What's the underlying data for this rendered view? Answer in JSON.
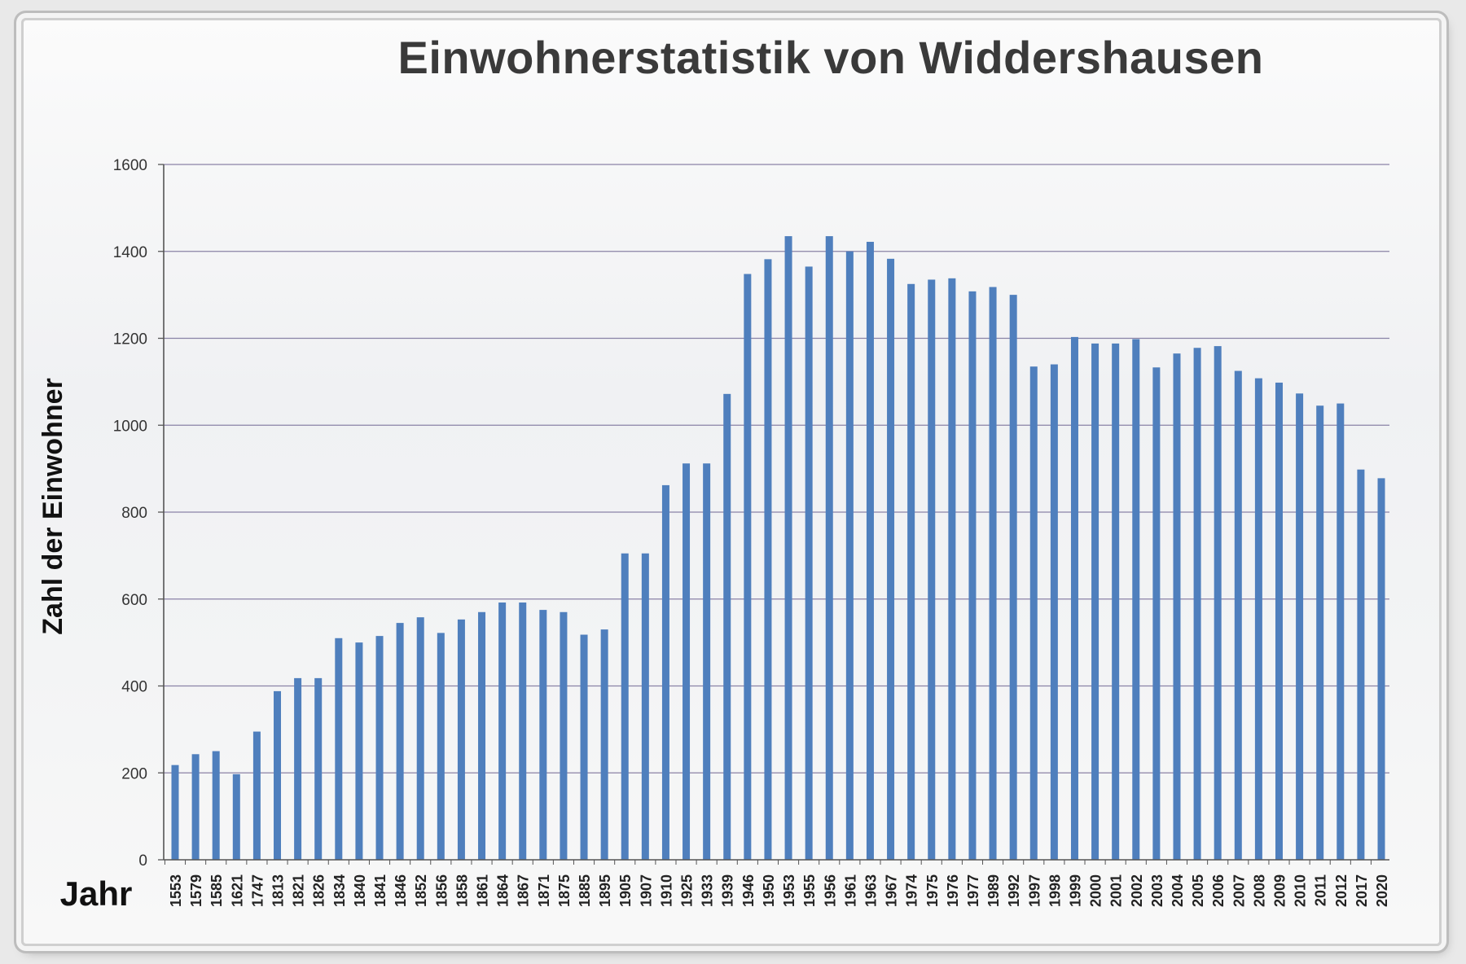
{
  "chart_data": {
    "type": "bar",
    "title": "Einwohnerstatistik von Widdershausen",
    "xlabel": "Jahr",
    "ylabel": "Zahl  der Einwohner",
    "ylim": [
      0,
      1600
    ],
    "yticks": [
      0,
      200,
      400,
      600,
      800,
      1000,
      1200,
      1400,
      1600
    ],
    "grid": true,
    "legend": "none",
    "colors": {
      "bar": "#4f7fbd",
      "grid": "#8a82a6",
      "axis": "#555555"
    },
    "categories": [
      "1553",
      "1579",
      "1585",
      "1621",
      "1747",
      "1813",
      "1821",
      "1826",
      "1834",
      "1840",
      "1841",
      "1846",
      "1852",
      "1856",
      "1858",
      "1861",
      "1864",
      "1867",
      "1871",
      "1875",
      "1885",
      "1895",
      "1905",
      "1907",
      "1910",
      "1925",
      "1933",
      "1939",
      "1946",
      "1950",
      "1953",
      "1955",
      "1956",
      "1961",
      "1963",
      "1967",
      "1974",
      "1975",
      "1976",
      "1977",
      "1989",
      "1992",
      "1997",
      "1998",
      "1999",
      "2000",
      "2001",
      "2002",
      "2003",
      "2004",
      "2005",
      "2006",
      "2007",
      "2008",
      "2009",
      "2010",
      "2011",
      "2012",
      "2017",
      "2020"
    ],
    "values": [
      218,
      243,
      250,
      197,
      295,
      388,
      418,
      418,
      510,
      500,
      515,
      545,
      558,
      522,
      553,
      570,
      592,
      592,
      575,
      570,
      518,
      530,
      705,
      705,
      862,
      912,
      912,
      1072,
      1348,
      1382,
      1435,
      1365,
      1435,
      1400,
      1422,
      1383,
      1325,
      1335,
      1338,
      1308,
      1318,
      1300,
      1135,
      1140,
      1203,
      1188,
      1188,
      1198,
      1133,
      1165,
      1178,
      1182,
      1125,
      1108,
      1098,
      1073,
      1045,
      1050,
      898,
      878
    ]
  }
}
